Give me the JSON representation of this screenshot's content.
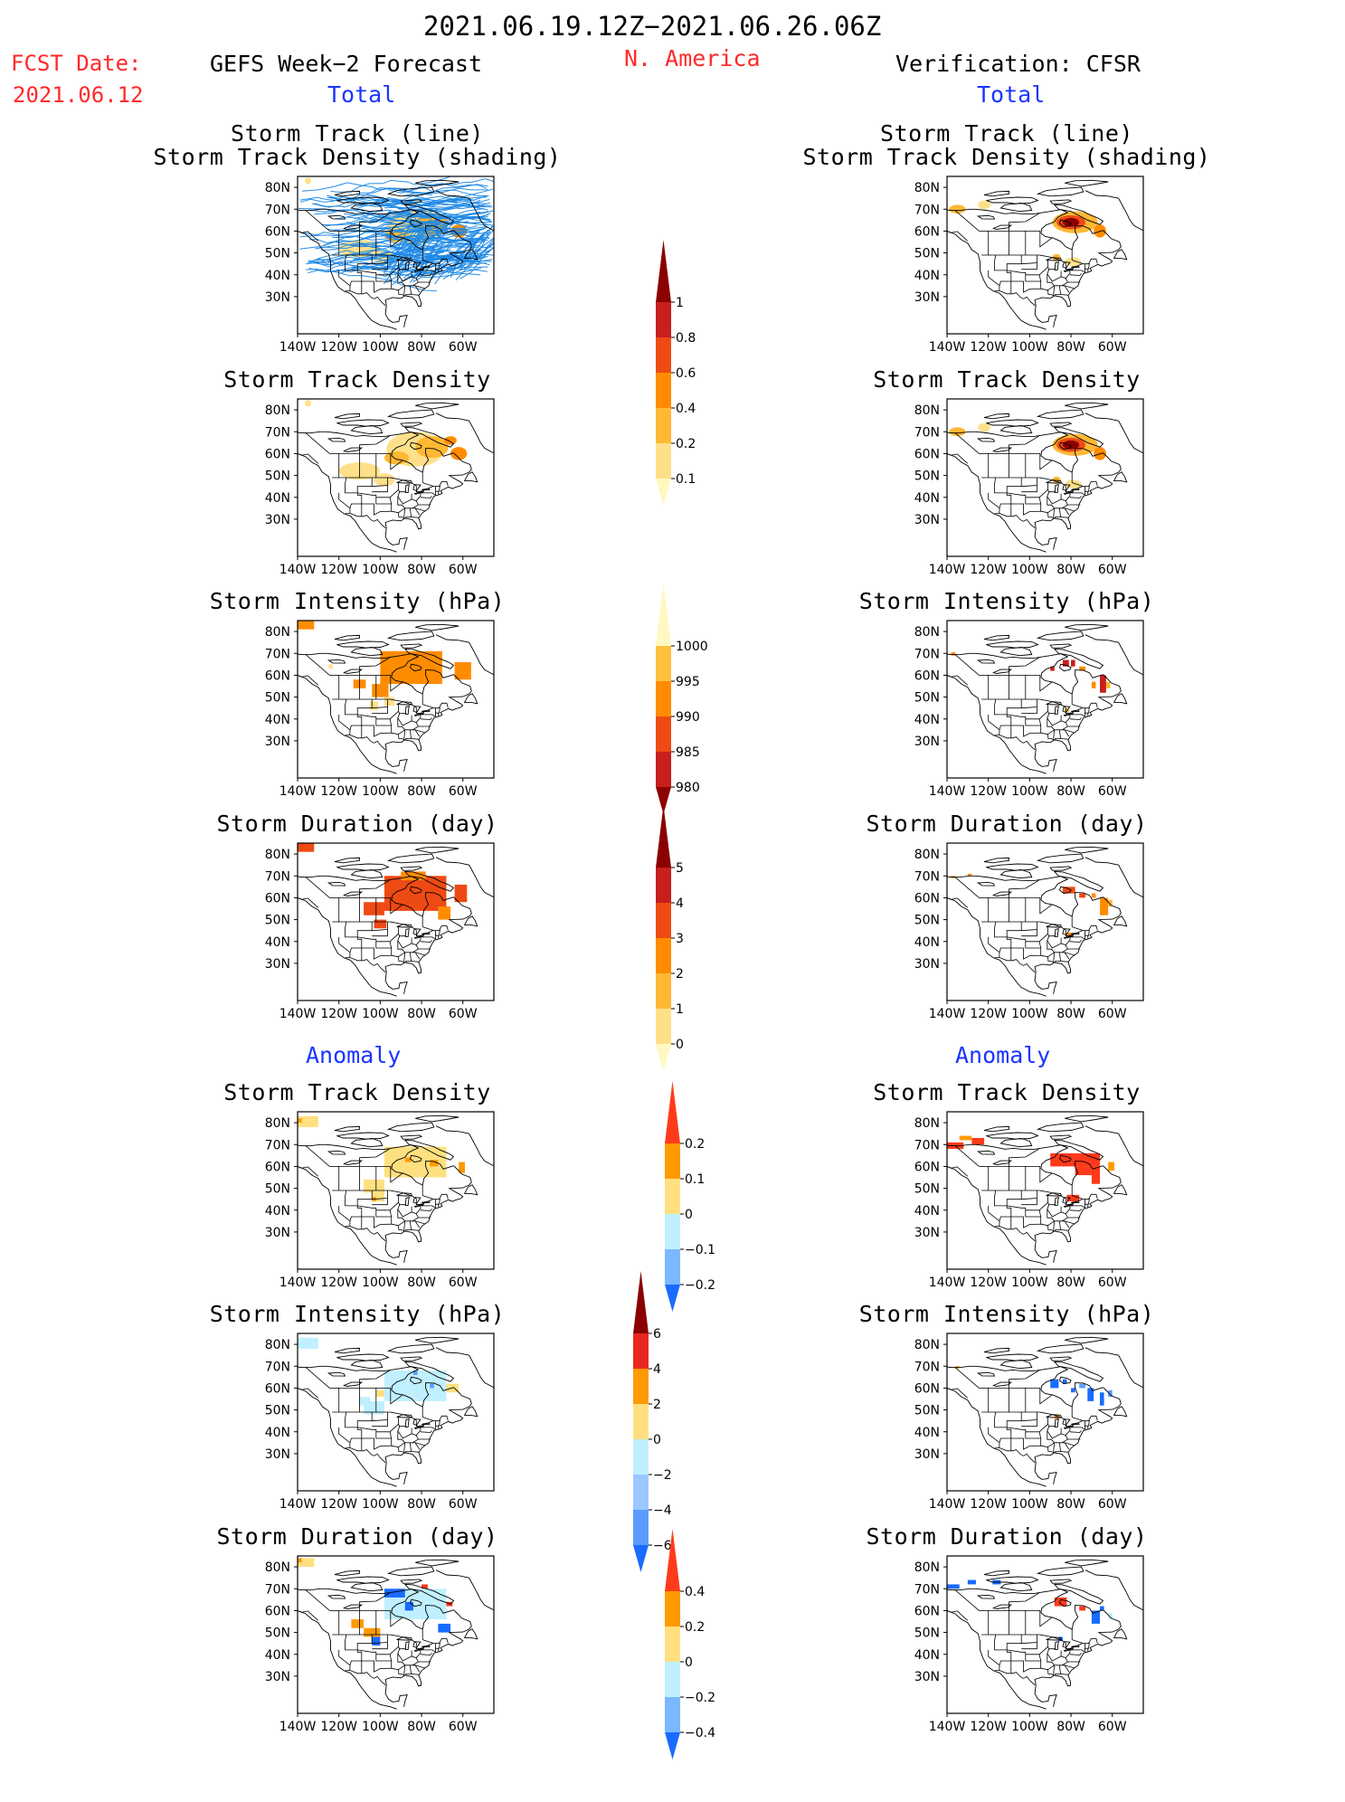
{
  "header": {
    "period": "2021.06.19.12Z−2021.06.26.06Z",
    "region": "N. America",
    "fcst_label": "FCST Date:",
    "fcst_date": "2021.06.12",
    "left_title": "GEFS Week−2 Forecast",
    "right_title": "Verification: CFSR",
    "left_total": "Total",
    "right_total": "Total",
    "left_anomaly": "Anomaly",
    "right_anomaly": "Anomaly"
  },
  "axes": {
    "lat_labels": [
      "80N",
      "70N",
      "60N",
      "50N",
      "40N",
      "30N"
    ],
    "lon_labels": [
      "140W",
      "120W",
      "100W",
      "80W",
      "60W"
    ]
  },
  "panels": {
    "track_line_title_1": "Storm Track (line)",
    "track_line_title_2": "Storm Track Density (shading)",
    "density": "Storm Track Density",
    "intensity": "Storm Intensity (hPa)",
    "duration": "Storm Duration (day)"
  },
  "colorbars": {
    "density_total": {
      "labels": [
        "1",
        "0.8",
        "0.6",
        "0.4",
        "0.2",
        "0.1"
      ],
      "colors": [
        "#8b0000",
        "#c81e1e",
        "#ee4a14",
        "#ff8c00",
        "#ffb833",
        "#ffe08a",
        "#fff8c0"
      ]
    },
    "intensity_total": {
      "labels": [
        "1000",
        "995",
        "990",
        "985",
        "980"
      ],
      "colors": [
        "#fff8c0",
        "#ffc040",
        "#ff8c00",
        "#ee4a14",
        "#c81e1e",
        "#8b0000"
      ]
    },
    "duration_total": {
      "labels": [
        "5",
        "4",
        "3",
        "2",
        "1",
        "0"
      ],
      "colors": [
        "#8b0000",
        "#c81e1e",
        "#ee4a14",
        "#ff8c00",
        "#ffb833",
        "#ffe08a",
        "#fff8c0"
      ]
    },
    "density_anom": {
      "labels": [
        "0.2",
        "0.1",
        "0",
        "−0.1",
        "−0.2"
      ],
      "colors": [
        "#ff3a1a",
        "#ff9a00",
        "#ffe080",
        "#c0f0ff",
        "#7ab8ff",
        "#1a6bff"
      ]
    },
    "intensity_anom": {
      "labels": [
        "6",
        "4",
        "2",
        "0",
        "−2",
        "−4",
        "−6"
      ],
      "colors": [
        "#8b0000",
        "#e8281e",
        "#ff9a00",
        "#ffe080",
        "#c0f0ff",
        "#9cc8ff",
        "#5a9cff",
        "#1a6bff"
      ]
    },
    "duration_anom": {
      "labels": [
        "0.4",
        "0.2",
        "0",
        "−0.2",
        "−0.4"
      ],
      "colors": [
        "#ff3a1a",
        "#ff9a00",
        "#ffe080",
        "#c0f0ff",
        "#7ab8ff",
        "#1a6bff"
      ]
    }
  }
}
